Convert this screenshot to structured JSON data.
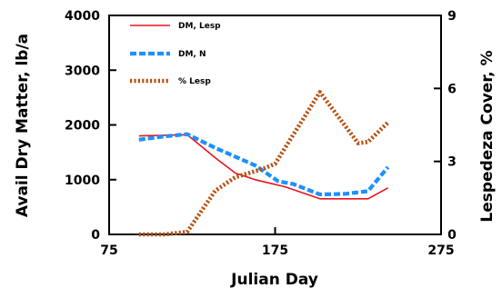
{
  "chart_data": {
    "type": "line",
    "title": "",
    "xlabel": "Julian Day",
    "ylabel": "Avail Dry Matter, lb/a",
    "y2label": "Lespedeza Cover, %",
    "xlim": [
      75,
      275
    ],
    "ylim": [
      0,
      4000
    ],
    "y2lim": [
      0,
      9
    ],
    "x_ticks": [
      "75",
      "175",
      "275"
    ],
    "y_ticks": [
      "0",
      "1000",
      "2000",
      "3000",
      "4000"
    ],
    "y2_ticks": [
      "0",
      "3",
      "6",
      "9"
    ],
    "grid": false,
    "legend_position": "top-left",
    "series": [
      {
        "name": "DM, Lesp",
        "axis": "left",
        "color": "#e8141c",
        "style": "solid-thin",
        "x": [
          93,
          122,
          139,
          151,
          163,
          181,
          202,
          231,
          243
        ],
        "y": [
          1800,
          1820,
          1400,
          1120,
          1000,
          870,
          650,
          650,
          850
        ]
      },
      {
        "name": "DM, N",
        "axis": "left",
        "color": "#1e90ff",
        "style": "dashed-thick",
        "x": [
          93,
          108,
          122,
          139,
          163,
          177,
          186,
          202,
          217,
          231,
          243
        ],
        "y": [
          1730,
          1790,
          1830,
          1580,
          1260,
          970,
          920,
          730,
          740,
          790,
          1230
        ]
      },
      {
        "name": "% Lesp",
        "axis": "right",
        "color": "#b5520f",
        "style": "dotted-thick",
        "x": [
          93,
          108,
          122,
          139,
          151,
          163,
          168,
          175,
          202,
          225,
          231,
          243
        ],
        "y": [
          0,
          0,
          0.1,
          1.8,
          2.35,
          2.6,
          2.7,
          2.9,
          5.85,
          3.75,
          3.8,
          4.6
        ]
      }
    ]
  }
}
